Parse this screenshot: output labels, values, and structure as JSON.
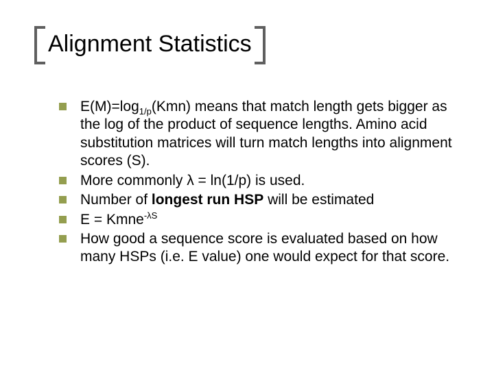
{
  "title": "Alignment Statistics",
  "title_fontsize": 34,
  "body_fontsize": 21,
  "colors": {
    "background": "#ffffff",
    "text": "#000000",
    "bracket": "#5f5f5f",
    "bullet": "#949e4f"
  },
  "bullets": [
    {
      "plain": "E(M)=log1/p(Kmn) means that match length gets bigger as the log of the product of sequence lengths. Amino acid substitution matrices will turn match lengths into alignment scores (S).",
      "segments": [
        {
          "t": "E(M)=log"
        },
        {
          "t": "1/p",
          "sub": true
        },
        {
          "t": "(Kmn) means that match length gets bigger as the log of the product of sequence lengths. Amino acid substitution matrices will turn match lengths into alignment scores (S)."
        }
      ]
    },
    {
      "plain": "More commonly λ = ln(1/p) is used.",
      "segments": [
        {
          "t": "More commonly λ = ln(1/p) is used."
        }
      ]
    },
    {
      "plain": "Number of longest run HSP will be estimated",
      "segments": [
        {
          "t": "Number of "
        },
        {
          "t": "longest run HSP",
          "bold": true
        },
        {
          "t": " will be estimated"
        }
      ]
    },
    {
      "plain": "E = Kmne-λS",
      "segments": [
        {
          "t": "E = Kmne"
        },
        {
          "t": "-λS",
          "sup": true
        }
      ]
    },
    {
      "plain": "How good a sequence score is evaluated based on how many HSPs (i.e. E value) one would expect for that score.",
      "segments": [
        {
          "t": "How good a sequence score is evaluated based on how many HSPs (i.e. E value) one would expect for that score."
        }
      ]
    }
  ]
}
